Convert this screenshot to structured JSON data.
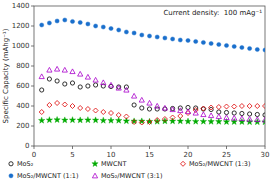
{
  "chart_data": {
    "type": "scatter",
    "annotation": "Current density:  100 mAg⁻¹",
    "ylabel": "Specific Capacity (mAhg⁻¹)",
    "x": [
      1,
      2,
      3,
      4,
      5,
      6,
      7,
      8,
      9,
      10,
      11,
      12,
      13,
      14,
      15,
      16,
      17,
      18,
      19,
      20,
      21,
      22,
      23,
      24,
      25,
      26,
      27,
      28,
      29,
      30
    ],
    "series": [
      {
        "name": "MoS₂",
        "color": "#000000",
        "marker": "open-circle",
        "values": [
          560,
          670,
          650,
          620,
          630,
          590,
          600,
          610,
          600,
          595,
          590,
          590,
          410,
          380,
          370,
          370,
          370,
          375,
          380,
          385,
          380,
          370,
          365,
          340,
          335,
          330,
          325,
          320,
          315,
          310
        ]
      },
      {
        "name": "MWCNT",
        "color": "#00aa00",
        "marker": "star",
        "values": [
          255,
          260,
          262,
          258,
          260,
          258,
          260,
          258,
          255,
          255,
          255,
          250,
          248,
          248,
          245,
          245,
          248,
          248,
          248,
          246,
          245,
          245,
          244,
          244,
          242,
          242,
          242,
          240,
          240,
          240
        ]
      },
      {
        "name": "MoS₂/MWCNT (1:3)",
        "color": "#dd0000",
        "marker": "open-diamond",
        "values": [
          340,
          410,
          430,
          415,
          400,
          380,
          370,
          355,
          340,
          330,
          310,
          295,
          240,
          235,
          240,
          260,
          270,
          285,
          300,
          330,
          360,
          375,
          385,
          390,
          395,
          395,
          400,
          400,
          400,
          400
        ]
      },
      {
        "name": "MoS₂/MWCNT (1:1)",
        "color": "#1a6fcc",
        "marker": "circle",
        "values": [
          1210,
          1230,
          1250,
          1260,
          1245,
          1235,
          1220,
          1200,
          1190,
          1175,
          1160,
          1140,
          1130,
          1110,
          1100,
          1090,
          1080,
          1070,
          1060,
          1055,
          1045,
          1035,
          1025,
          1015,
          1005,
          995,
          985,
          975,
          965,
          960
        ]
      },
      {
        "name": "MoS₂/MWCNT (3:1)",
        "color": "#aa00cc",
        "marker": "open-triangle",
        "values": [
          695,
          760,
          770,
          760,
          745,
          720,
          690,
          660,
          635,
          610,
          580,
          560,
          500,
          460,
          430,
          400,
          380,
          365,
          355,
          345,
          330,
          315,
          305,
          295,
          285,
          280,
          275,
          270,
          265,
          260
        ]
      }
    ],
    "xlim": [
      0,
      30
    ],
    "xticks": [
      0,
      5,
      10,
      15,
      20,
      25,
      30
    ],
    "ylim": [
      0,
      1400
    ],
    "yticks": [
      0,
      200,
      400,
      600,
      800,
      1000,
      1200,
      1400
    ],
    "grid": false,
    "legend": "bottom"
  }
}
